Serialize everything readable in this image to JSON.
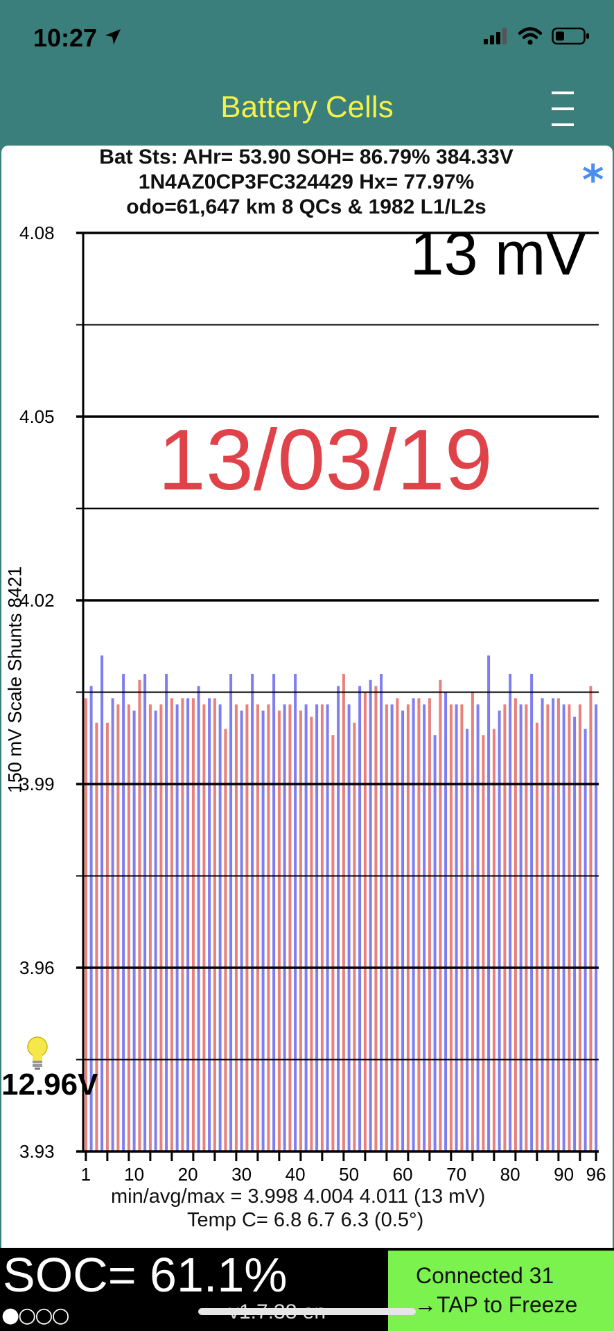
{
  "status": {
    "time": "10:27"
  },
  "nav": {
    "title": "Battery Cells",
    "menu_icon": "hamburger-icon"
  },
  "header": {
    "line1": "Bat Sts: AHr= 53.90 SOH= 86.79% 384.33V",
    "line2": "1N4AZ0CP3FC324429   Hx= 77.97%",
    "line3": "odo=61,647 km 8 QCs & 1982 L1/L2s",
    "bluetooth_icon": "asterisk-icon",
    "bluetooth_color": "#4a8ff0"
  },
  "overlay": {
    "spread": "13 mV",
    "date": "13/03/19",
    "date_color": "#e0424a"
  },
  "y_axis_title": "150 mV Scale   Shunts 8421",
  "stats": {
    "minavgmax": "min/avg/max = 3.998  4.004  4.011  (13 mV)",
    "temp": "Temp C= 6.8  6.7  6.3  (0.5°)"
  },
  "pack_voltage": "12.96V",
  "bulb_icon": "lightbulb-icon",
  "soc": "SOC= 61.1%",
  "indicator_dots": "●○○○",
  "version": "v1.7.38 en",
  "connect": {
    "line1": "Connected 31",
    "line2": "→TAP to Freeze",
    "color": "#7cf24f"
  },
  "chart_data": {
    "type": "bar",
    "title": "",
    "xlabel": "",
    "ylabel": "150 mV Scale   Shunts 8421",
    "ylim": [
      3.93,
      4.08
    ],
    "yticks": [
      "4.08",
      "4.05",
      "4.02",
      "3.99",
      "3.96",
      "3.93"
    ],
    "xticks": [
      "1",
      "10",
      "20",
      "30",
      "40",
      "50",
      "60",
      "70",
      "80",
      "90",
      "96"
    ],
    "grid": true,
    "colors": {
      "odd": "#e8807c",
      "even": "#7f7ef0"
    },
    "categories": [
      1,
      2,
      3,
      4,
      5,
      6,
      7,
      8,
      9,
      10,
      11,
      12,
      13,
      14,
      15,
      16,
      17,
      18,
      19,
      20,
      21,
      22,
      23,
      24,
      25,
      26,
      27,
      28,
      29,
      30,
      31,
      32,
      33,
      34,
      35,
      36,
      37,
      38,
      39,
      40,
      41,
      42,
      43,
      44,
      45,
      46,
      47,
      48,
      49,
      50,
      51,
      52,
      53,
      54,
      55,
      56,
      57,
      58,
      59,
      60,
      61,
      62,
      63,
      64,
      65,
      66,
      67,
      68,
      69,
      70,
      71,
      72,
      73,
      74,
      75,
      76,
      77,
      78,
      79,
      80,
      81,
      82,
      83,
      84,
      85,
      86,
      87,
      88,
      89,
      90,
      91,
      92,
      93,
      94,
      95,
      96
    ],
    "values": [
      4.004,
      4.006,
      4.0,
      4.011,
      4.0,
      4.004,
      4.003,
      4.008,
      4.003,
      4.002,
      4.007,
      4.008,
      4.003,
      4.002,
      4.003,
      4.008,
      4.004,
      4.003,
      4.004,
      4.004,
      4.004,
      4.006,
      4.003,
      4.004,
      4.004,
      4.003,
      3.999,
      4.008,
      4.003,
      4.002,
      4.003,
      4.008,
      4.003,
      4.002,
      4.003,
      4.008,
      4.002,
      4.003,
      4.003,
      4.008,
      4.002,
      4.003,
      4.001,
      4.003,
      4.003,
      4.003,
      3.998,
      4.006,
      4.008,
      4.003,
      4.0,
      4.006,
      4.005,
      4.007,
      4.006,
      4.008,
      4.003,
      4.003,
      4.004,
      4.002,
      4.003,
      4.004,
      4.004,
      4.003,
      4.004,
      3.998,
      4.007,
      4.005,
      4.003,
      4.003,
      4.003,
      3.999,
      4.005,
      4.003,
      3.998,
      4.011,
      3.999,
      4.002,
      4.003,
      4.008,
      4.004,
      4.003,
      4.003,
      4.008,
      4.0,
      4.004,
      4.003,
      4.004,
      4.004,
      4.003,
      4.003,
      4.001,
      4.003,
      3.999,
      4.006,
      4.003
    ]
  }
}
